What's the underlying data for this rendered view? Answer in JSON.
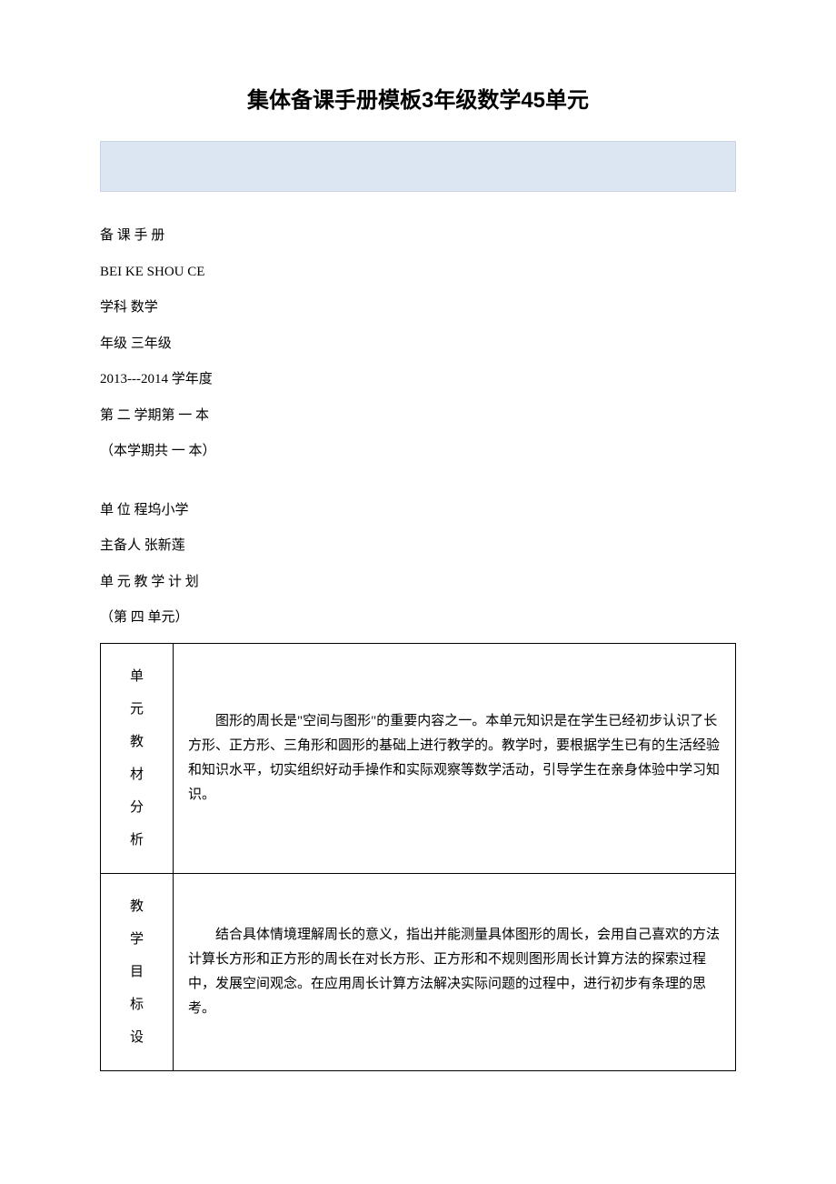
{
  "title": "集体备课手册模板3年级数学45单元",
  "header": {
    "line1": "备 课 手 册",
    "line2": "BEI KE SHOU CE",
    "subject_label": " 学科 数学",
    "grade_label": " 年级 三年级",
    "year_label": " 2013---2014 学年度",
    "semester_label": "第 二 学期第 一 本",
    "copies_label": "（本学期共 一 本）",
    "unit_label": " 单 位 程坞小学",
    "author_label": " 主备人 张新莲",
    "plan_title": " 单 元 教 学 计 划",
    "unit_number": "（第 四 单元）"
  },
  "table": {
    "row1": {
      "label_chars": [
        "单",
        "元",
        "教",
        "材",
        "分",
        "析"
      ],
      "content": "图形的周长是\"空间与图形\"的重要内容之一。本单元知识是在学生已经初步认识了长方形、正方形、三角形和圆形的基础上进行教学的。教学时，要根据学生已有的生活经验和知识水平，切实组织好动手操作和实际观察等数学活动，引导学生在亲身体验中学习知识。"
    },
    "row2": {
      "label_chars": [
        "教",
        "学",
        "目",
        "标",
        "设"
      ],
      "content": "结合具体情境理解周长的意义，指出并能测量具体图形的周长，会用自己喜欢的方法计算长方形和正方形的周长在对长方形、正方形和不规则图形周长计算方法的探索过程中，发展空间观念。在应用周长计算方法解决实际问题的过程中，进行初步有条理的思考。"
    }
  }
}
